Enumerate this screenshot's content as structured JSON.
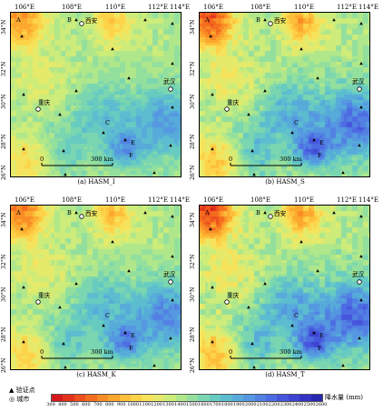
{
  "axes": {
    "lon_labels": [
      "106°E",
      "108°E",
      "110°E",
      "112°E",
      "114°E"
    ],
    "lat_labels": [
      "34°N",
      "32°N",
      "30°N",
      "28°N",
      "26°N"
    ]
  },
  "panels": [
    {
      "id": "a",
      "caption": "(a) HASM_I",
      "intensity": 0.0
    },
    {
      "id": "b",
      "caption": "(b) HASM_S",
      "intensity": 0.35
    },
    {
      "id": "c",
      "caption": "(c) HASM_K",
      "intensity": 0.15
    },
    {
      "id": "d",
      "caption": "(d) HASM_T",
      "intensity": 0.45
    }
  ],
  "map_labels": {
    "region_a": "A",
    "region_b": "B",
    "region_c": "C",
    "region_e": "E",
    "region_f": "F",
    "xian": "西安",
    "chongqing": "重庆",
    "wuhan": "武汉",
    "scale_zero": "0",
    "scale_km": "300 km"
  },
  "legend": {
    "station_label": "验证点",
    "city_label": "城市",
    "unit": "降水量 (mm)",
    "ticks": [
      "300",
      "400",
      "500",
      "600",
      "700",
      "800",
      "900",
      "1000",
      "1100",
      "1200",
      "1300",
      "1400",
      "1500",
      "1600",
      "1700",
      "1800",
      "1900",
      "2000",
      "2100",
      "2200",
      "2300",
      "2400",
      "2500",
      "2600"
    ],
    "colors": [
      "#d7191c",
      "#e2321b",
      "#ed4f1d",
      "#f46d1f",
      "#f98c25",
      "#fca72e",
      "#fdbf3a",
      "#fdd34a",
      "#f6e25b",
      "#e6ea6a",
      "#cdec7a",
      "#b0e78b",
      "#93df9d",
      "#7ad6b0",
      "#67cbc1",
      "#5dbdd0",
      "#57abda",
      "#5597e0",
      "#5281e3",
      "#4d6be2",
      "#4656dc",
      "#3d43d2",
      "#3333c4",
      "#2626b0"
    ]
  }
}
